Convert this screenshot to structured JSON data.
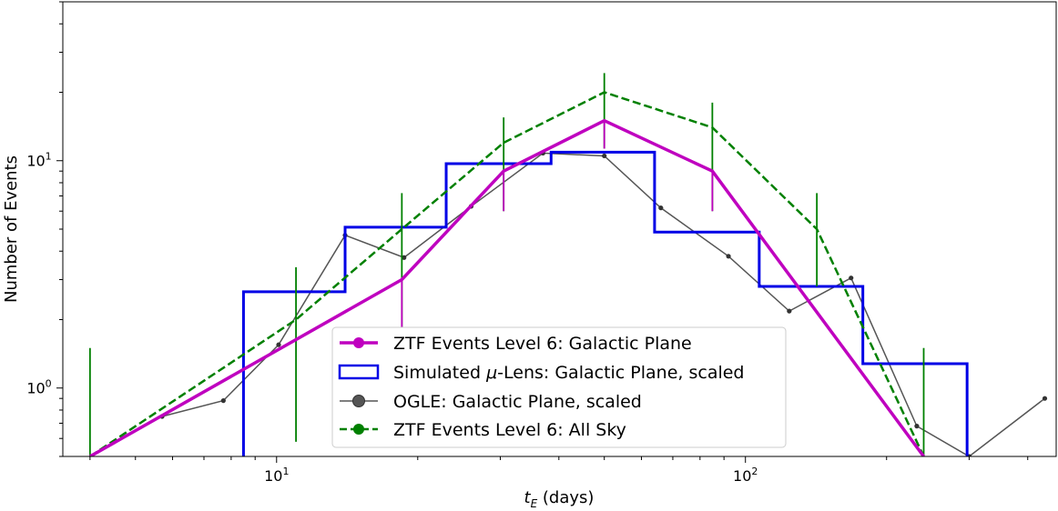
{
  "chart_data": {
    "type": "line",
    "xscale": "log",
    "yscale": "log",
    "xlim": [
      3.5,
      460
    ],
    "ylim": [
      0.5,
      50
    ],
    "xlabel": "t_E (days)",
    "ylabel": "Number of Events",
    "xticks": [
      {
        "value": 10,
        "base": "10",
        "exp": "1"
      },
      {
        "value": 100,
        "base": "10",
        "exp": "2"
      }
    ],
    "yticks": [
      {
        "value": 1,
        "base": "10",
        "exp": "0"
      },
      {
        "value": 10,
        "base": "10",
        "exp": "1"
      }
    ],
    "grid": false,
    "legend_position": "bottom-center",
    "series": [
      {
        "name": "ZTF Events Level 6: Galactic Plane",
        "kind": "line-errorbar",
        "color": "#bf00bf",
        "x": [
          4.0,
          18.5,
          30.5,
          50.0,
          85.0,
          240.0
        ],
        "y": [
          0.5,
          3.0,
          9.0,
          15.0,
          9.0,
          0.5
        ],
        "err_low": [
          null,
          1.85,
          6.0,
          11.3,
          6.0,
          null
        ],
        "err_high": [
          null,
          3.0,
          9.0,
          15.0,
          9.0,
          null
        ]
      },
      {
        "name": "Simulated μ-Lens: Galactic Plane, scaled",
        "kind": "step",
        "color": "#0000e6",
        "edges": [
          8.5,
          14.0,
          23.0,
          38.5,
          64.0,
          107.0,
          178.0,
          297.0
        ],
        "values": [
          2.65,
          5.1,
          9.7,
          10.9,
          4.85,
          2.8,
          1.28
        ]
      },
      {
        "name": "OGLE: Galactic Plane, scaled",
        "kind": "line-marker",
        "color": "#555555",
        "x": [
          5.7,
          7.7,
          10.1,
          14.0,
          18.7,
          26.0,
          37.0,
          50.0,
          66.0,
          92.0,
          124.0,
          168.0,
          232.0,
          300.0,
          435.0
        ],
        "y": [
          0.75,
          0.88,
          1.55,
          4.7,
          3.75,
          6.3,
          10.8,
          10.5,
          6.2,
          3.8,
          2.18,
          3.05,
          0.68,
          0.5,
          0.9
        ]
      },
      {
        "name": "ZTF Events Level 6: All Sky",
        "kind": "dashed-errorbar",
        "color": "#008000",
        "x": [
          4.0,
          11.0,
          18.5,
          30.5,
          50.0,
          85.0,
          142.0,
          240.0
        ],
        "y": [
          0.5,
          2.0,
          5.0,
          12.0,
          20.0,
          14.0,
          5.0,
          0.5
        ],
        "err_low": [
          0.5,
          0.58,
          1.85,
          6.0,
          11.3,
          6.0,
          2.8,
          0.5
        ],
        "err_high": [
          1.5,
          3.4,
          7.2,
          15.5,
          24.3,
          18.0,
          7.2,
          1.5
        ]
      }
    ]
  }
}
